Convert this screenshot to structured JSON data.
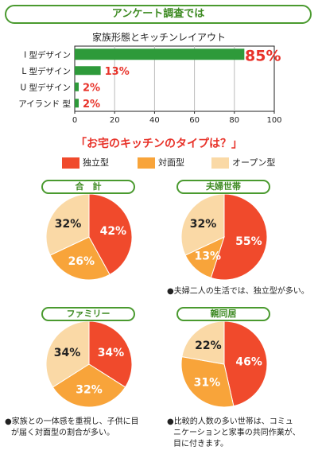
{
  "header": {
    "title": "アンケート調査では"
  },
  "chart_data": [
    {
      "type": "bar",
      "orientation": "horizontal",
      "title": "家族形態とキッチンレイアウト",
      "categories": [
        "I 型デザイン",
        "L 型デザイン",
        "U 型デザイン",
        "アイランド 型"
      ],
      "values": [
        85,
        13,
        2,
        2
      ],
      "value_labels": [
        "85%",
        "13%",
        "2%",
        "2%"
      ],
      "xlim": [
        0,
        100
      ],
      "xticks": [
        "0",
        "20",
        "40",
        "60",
        "80",
        "100"
      ],
      "color": "#2e9a3a",
      "label_color": "#e8332a"
    },
    {
      "type": "pie",
      "title": "合　計",
      "values": [
        42,
        26,
        32
      ],
      "labels": [
        "42%",
        "26%",
        "32%"
      ]
    },
    {
      "type": "pie",
      "title": "夫婦世帯",
      "values": [
        55,
        13,
        32
      ],
      "labels": [
        "55%",
        "13%",
        "32%"
      ]
    },
    {
      "type": "pie",
      "title": "ファミリー",
      "values": [
        34,
        32,
        34
      ],
      "labels": [
        "34%",
        "32%",
        "34%"
      ]
    },
    {
      "type": "pie",
      "title": "親同居",
      "values": [
        46,
        31,
        22
      ],
      "labels": [
        "46%",
        "31%",
        "22%"
      ]
    }
  ],
  "section_title": "「お宅のキッチンのタイプは？」",
  "legend": [
    {
      "name": "独立型",
      "color": "#f04a2c"
    },
    {
      "name": "対面型",
      "color": "#f8a43a"
    },
    {
      "name": "オープン型",
      "color": "#fad9a6"
    }
  ],
  "notes": {
    "couple": "●夫婦二人の生活では、独立型が多い。",
    "family": [
      "●家族との一体感を重視し、子供に目",
      "が届く対面型の割合が多い。"
    ],
    "parents": [
      "●比較的人数の多い世帯は、コミュ",
      "ニケーションと家事の共同作業が、",
      "目に付きます。"
    ]
  }
}
